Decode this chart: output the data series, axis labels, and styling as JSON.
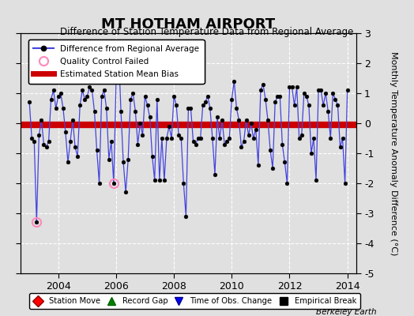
{
  "title": "MT HOTHAM AIRPORT",
  "subtitle": "Difference of Station Temperature Data from Regional Average",
  "ylabel": "Monthly Temperature Anomaly Difference (°C)",
  "ylim": [
    -5,
    3
  ],
  "yticks": [
    -5,
    -4,
    -3,
    -2,
    -1,
    0,
    1,
    2,
    3
  ],
  "bias_value": -0.05,
  "background_color": "#e0e0e0",
  "plot_bg_color": "#e0e0e0",
  "line_color": "#4444dd",
  "bias_color": "#cc0000",
  "qc_color": "#ff88bb",
  "watermark": "Berkeley Earth",
  "time_data": [
    2003.0,
    2003.083,
    2003.167,
    2003.25,
    2003.333,
    2003.417,
    2003.5,
    2003.583,
    2003.667,
    2003.75,
    2003.833,
    2003.917,
    2004.0,
    2004.083,
    2004.167,
    2004.25,
    2004.333,
    2004.417,
    2004.5,
    2004.583,
    2004.667,
    2004.75,
    2004.833,
    2004.917,
    2005.0,
    2005.083,
    2005.167,
    2005.25,
    2005.333,
    2005.417,
    2005.5,
    2005.583,
    2005.667,
    2005.75,
    2005.833,
    2005.917,
    2006.0,
    2006.083,
    2006.167,
    2006.25,
    2006.333,
    2006.417,
    2006.5,
    2006.583,
    2006.667,
    2006.75,
    2006.833,
    2006.917,
    2007.0,
    2007.083,
    2007.167,
    2007.25,
    2007.333,
    2007.417,
    2007.5,
    2007.583,
    2007.667,
    2007.75,
    2007.833,
    2007.917,
    2008.0,
    2008.083,
    2008.167,
    2008.25,
    2008.333,
    2008.417,
    2008.5,
    2008.583,
    2008.667,
    2008.75,
    2008.833,
    2008.917,
    2009.0,
    2009.083,
    2009.167,
    2009.25,
    2009.333,
    2009.417,
    2009.5,
    2009.583,
    2009.667,
    2009.75,
    2009.833,
    2009.917,
    2010.0,
    2010.083,
    2010.167,
    2010.25,
    2010.333,
    2010.417,
    2010.5,
    2010.583,
    2010.667,
    2010.75,
    2010.833,
    2010.917,
    2011.0,
    2011.083,
    2011.167,
    2011.25,
    2011.333,
    2011.417,
    2011.5,
    2011.583,
    2011.667,
    2011.75,
    2011.833,
    2011.917,
    2012.0,
    2012.083,
    2012.167,
    2012.25,
    2012.333,
    2012.417,
    2012.5,
    2012.583,
    2012.667,
    2012.75,
    2012.833,
    2012.917,
    2013.0,
    2013.083,
    2013.167,
    2013.25,
    2013.333,
    2013.417,
    2013.5,
    2013.583,
    2013.667,
    2013.75,
    2013.833,
    2013.917,
    2014.0
  ],
  "temp_data": [
    0.7,
    -0.5,
    -0.6,
    -3.3,
    -0.4,
    0.1,
    -0.7,
    -0.8,
    -0.6,
    0.8,
    1.1,
    0.5,
    0.9,
    1.0,
    0.5,
    -0.3,
    -1.3,
    -0.6,
    0.1,
    -0.8,
    -1.1,
    0.6,
    1.1,
    0.8,
    0.9,
    1.2,
    1.1,
    0.4,
    -0.9,
    -2.0,
    0.9,
    1.1,
    0.5,
    -1.2,
    -0.6,
    -2.0,
    1.4,
    2.5,
    0.4,
    -1.3,
    -2.3,
    -1.2,
    0.8,
    1.0,
    0.4,
    -0.7,
    0.0,
    -0.4,
    0.9,
    0.6,
    0.2,
    -1.1,
    -1.9,
    0.8,
    -1.9,
    -0.5,
    -1.9,
    -0.5,
    -0.1,
    -0.5,
    0.9,
    0.6,
    -0.4,
    -0.5,
    -2.0,
    -3.1,
    0.5,
    0.5,
    -0.6,
    -0.7,
    -0.5,
    -0.5,
    0.6,
    0.7,
    0.9,
    0.5,
    -0.5,
    -1.7,
    0.2,
    -0.5,
    0.1,
    -0.7,
    -0.6,
    -0.5,
    0.8,
    1.4,
    0.5,
    0.1,
    -0.8,
    -0.6,
    0.1,
    -0.4,
    0.0,
    -0.5,
    -0.2,
    -1.4,
    1.1,
    1.3,
    0.8,
    0.1,
    -0.9,
    -1.5,
    0.7,
    0.9,
    0.9,
    -0.7,
    -1.3,
    -2.0,
    1.2,
    1.2,
    0.6,
    1.2,
    -0.5,
    -0.4,
    1.0,
    0.9,
    0.6,
    -1.0,
    -0.5,
    -1.9,
    1.1,
    1.1,
    0.6,
    1.0,
    0.4,
    -0.5,
    1.0,
    0.8,
    0.6,
    -0.8,
    -0.5,
    -2.0,
    1.1
  ],
  "qc_failed_times": [
    2003.25,
    2005.917
  ],
  "qc_failed_values": [
    -3.3,
    -2.0
  ],
  "xlim": [
    2002.7,
    2014.3
  ],
  "xtick_positions": [
    2004,
    2006,
    2008,
    2010,
    2012,
    2014
  ]
}
